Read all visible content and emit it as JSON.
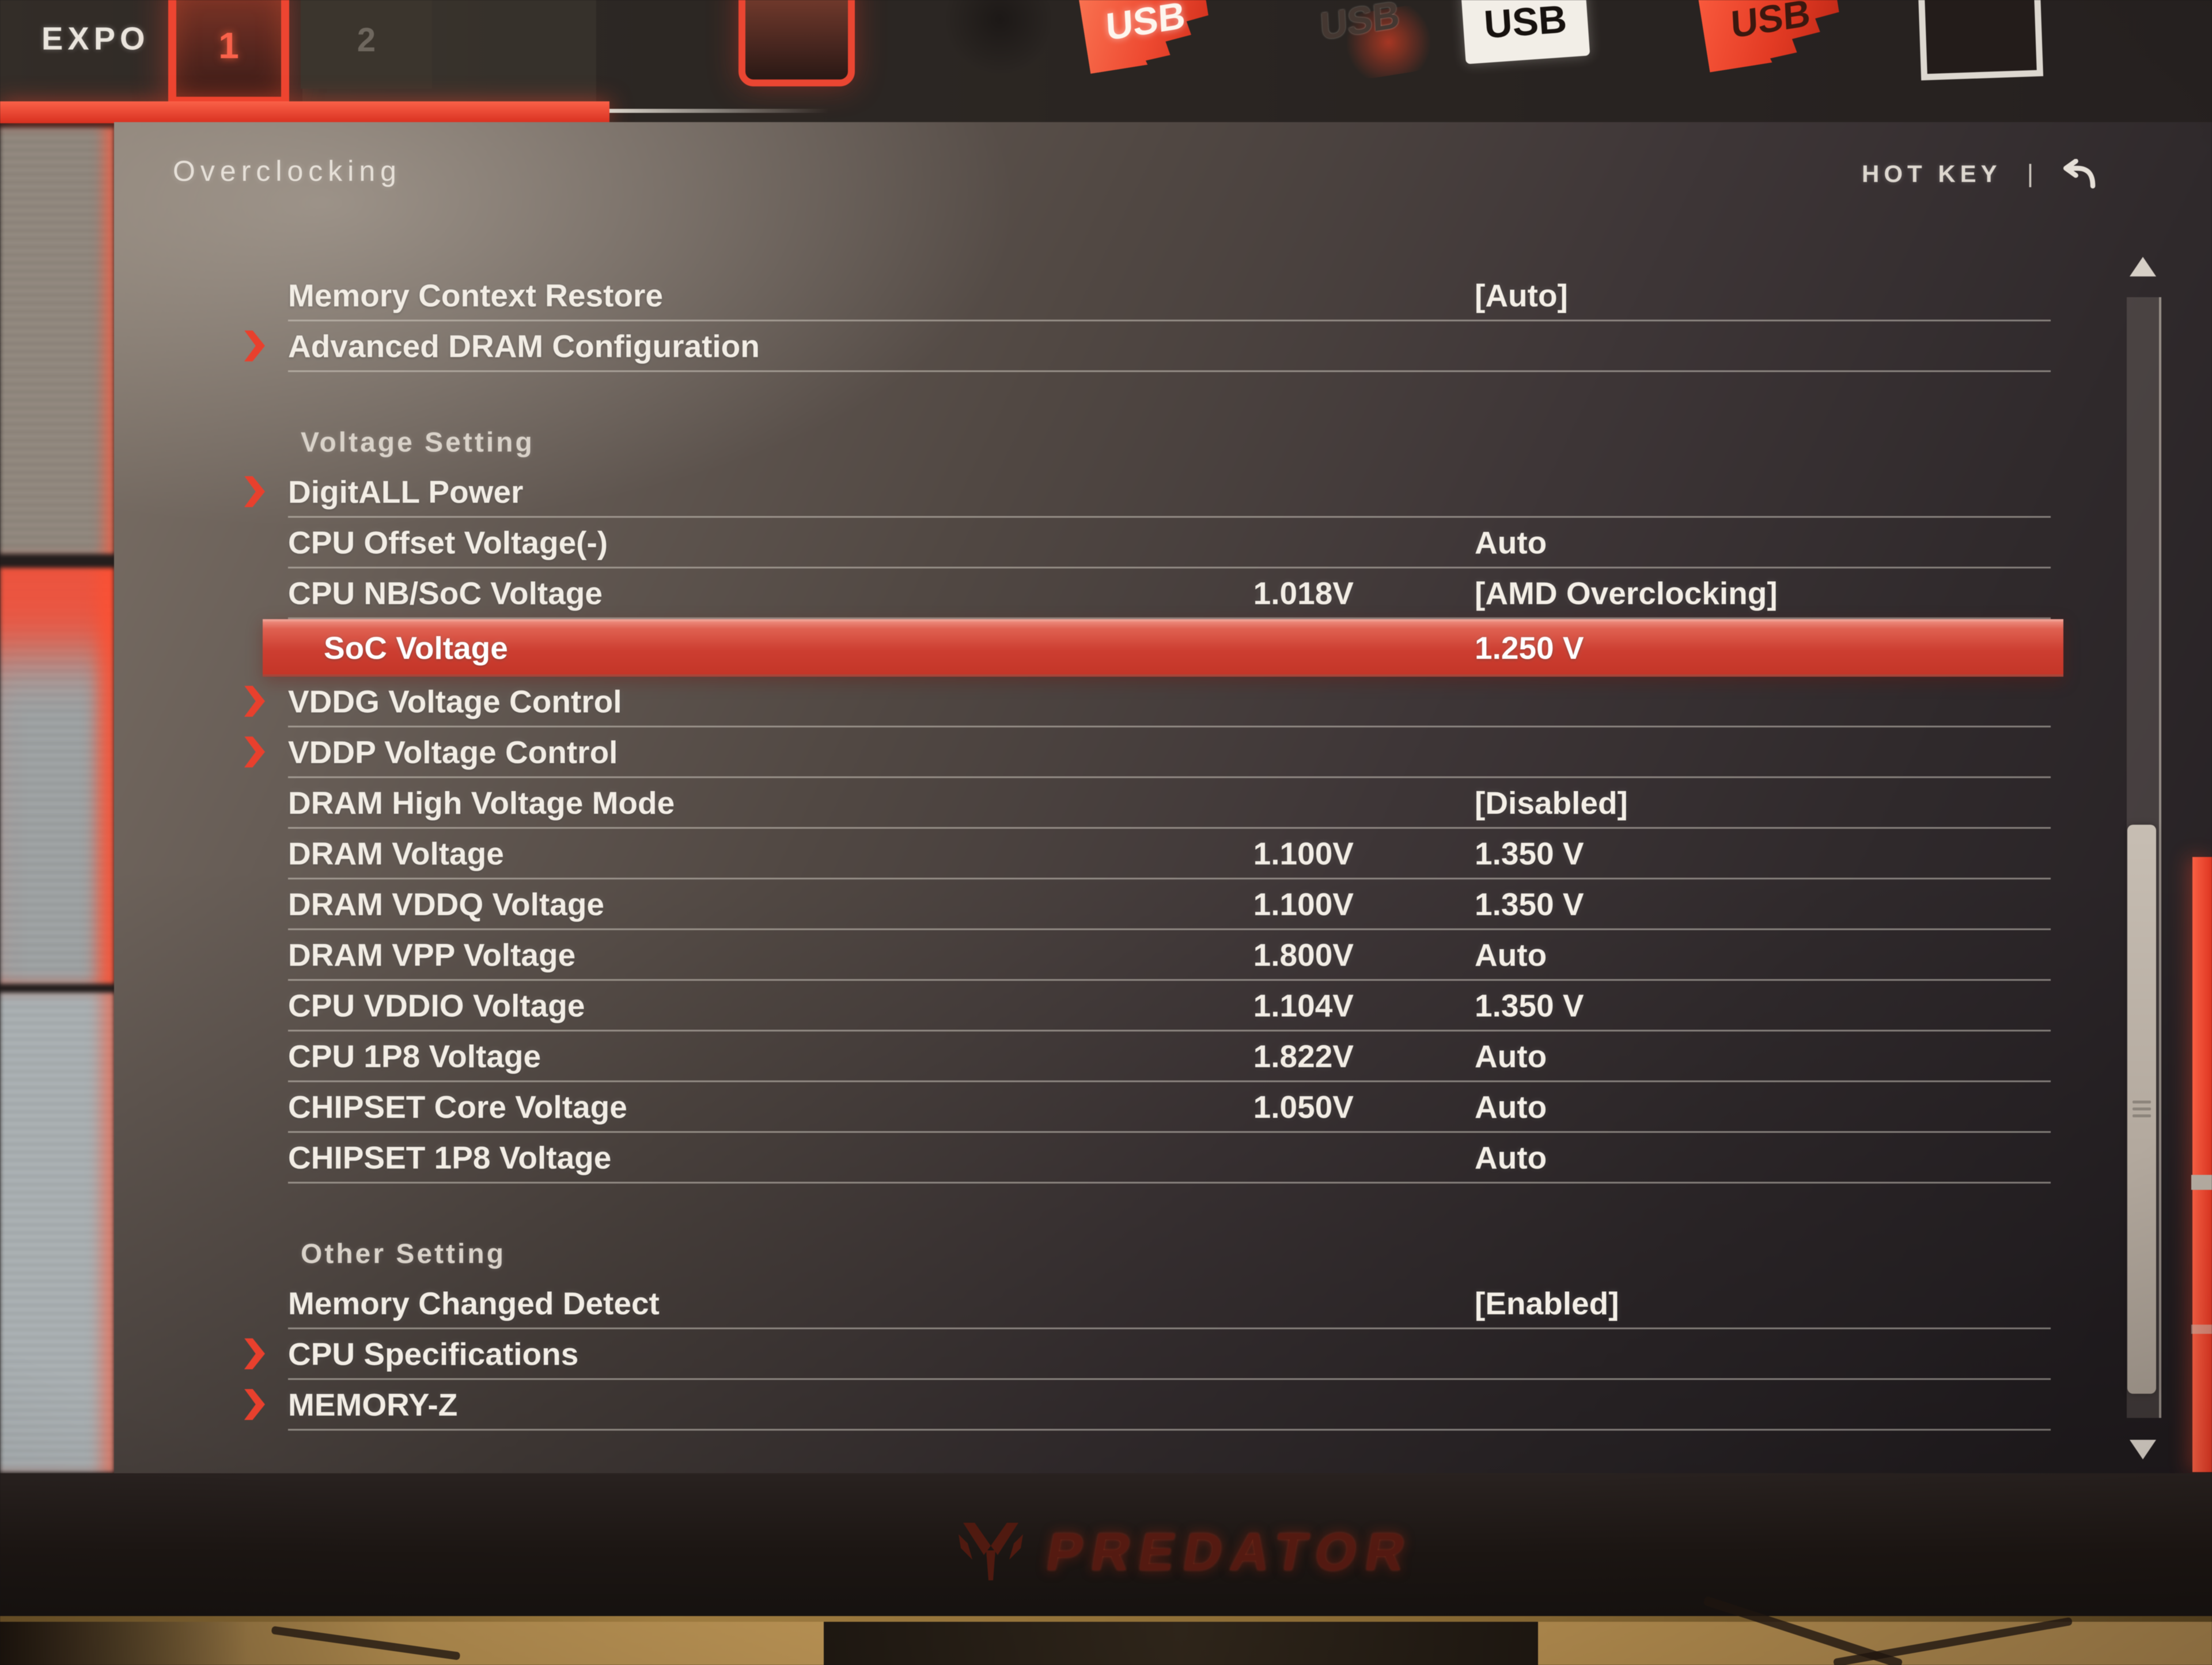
{
  "header": {
    "expo_label": "EXPO",
    "tab1_label": "1",
    "tab2_label": "2",
    "usb_label": "USB"
  },
  "titlebar": {
    "page_title": "Overclocking",
    "hotkey_label": "HOT KEY",
    "separator": "|",
    "back_icon": "return-arrow"
  },
  "menu": {
    "rows": [
      {
        "type": "item",
        "label": "Memory Context Restore",
        "value": "[Auto]"
      },
      {
        "type": "item",
        "label": "Advanced DRAM Configuration",
        "arrow": true
      },
      {
        "type": "spacer"
      },
      {
        "type": "section",
        "label": "Voltage Setting"
      },
      {
        "type": "item",
        "label": "DigitALL Power",
        "arrow": true
      },
      {
        "type": "item",
        "label": "CPU Offset Voltage(-)",
        "value": "Auto"
      },
      {
        "type": "item",
        "label": "CPU NB/SoC Voltage",
        "current": "1.018V",
        "value": "[AMD Overclocking]"
      },
      {
        "type": "item",
        "label": "SoC Voltage",
        "value": "1.250 V",
        "highlighted": true,
        "indent": true
      },
      {
        "type": "item",
        "label": "VDDG Voltage Control",
        "arrow": true
      },
      {
        "type": "item",
        "label": "VDDP Voltage Control",
        "arrow": true
      },
      {
        "type": "item",
        "label": "DRAM High Voltage Mode",
        "value": "[Disabled]"
      },
      {
        "type": "item",
        "label": "DRAM Voltage",
        "current": "1.100V",
        "value": "1.350 V"
      },
      {
        "type": "item",
        "label": "DRAM VDDQ Voltage",
        "current": "1.100V",
        "value": "1.350 V"
      },
      {
        "type": "item",
        "label": "DRAM VPP Voltage",
        "current": "1.800V",
        "value": "Auto"
      },
      {
        "type": "item",
        "label": "CPU VDDIO Voltage",
        "current": "1.104V",
        "value": "1.350 V"
      },
      {
        "type": "item",
        "label": "CPU 1P8 Voltage",
        "current": "1.822V",
        "value": "Auto"
      },
      {
        "type": "item",
        "label": "CHIPSET Core Voltage",
        "current": "1.050V",
        "value": "Auto"
      },
      {
        "type": "item",
        "label": "CHIPSET 1P8 Voltage",
        "value": "Auto"
      },
      {
        "type": "spacer"
      },
      {
        "type": "section",
        "label": "Other Setting"
      },
      {
        "type": "item",
        "label": "Memory Changed Detect",
        "value": "[Enabled]"
      },
      {
        "type": "item",
        "label": "CPU Specifications",
        "arrow": true
      },
      {
        "type": "item",
        "label": "MEMORY-Z",
        "arrow": true
      }
    ]
  },
  "monitor": {
    "brand": "PREDATOR"
  },
  "colors": {
    "accent_red": "#f3442f",
    "highlight_row": "#d23d2f",
    "panel_text": "#f2ede5"
  }
}
